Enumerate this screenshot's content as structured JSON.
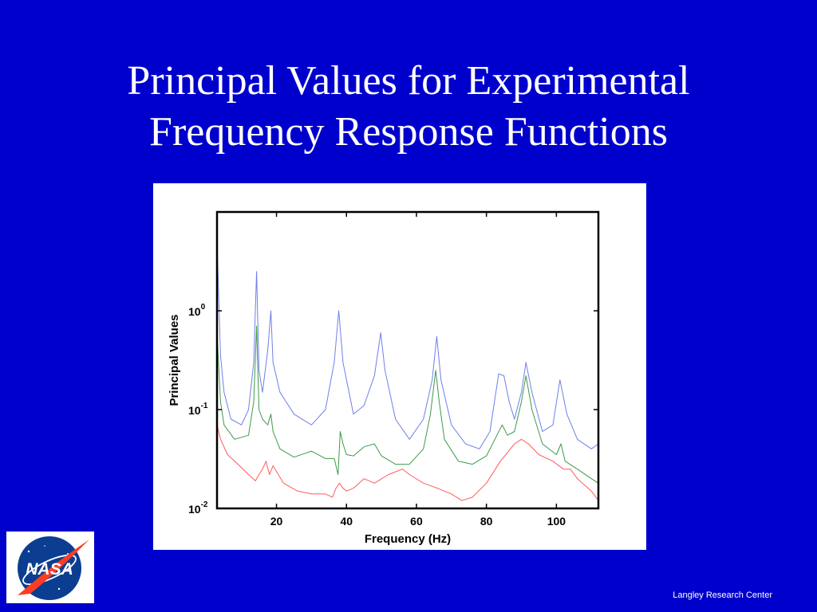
{
  "slide": {
    "title_line1": "Principal Values for Experimental",
    "title_line2": "Frequency Response Functions",
    "footer": "Langley Research Center",
    "logo_text": "NASA"
  },
  "colors": {
    "background": "#0000cc",
    "series_blue": "#6f7fe8",
    "series_green": "#3c9a4a",
    "series_red": "#ff5a5a"
  },
  "chart_data": {
    "type": "line",
    "title": "",
    "xlabel": "Frequency (Hz)",
    "ylabel": "Principal Values",
    "xlim": [
      3,
      112
    ],
    "ylim": [
      0.01,
      10
    ],
    "yscale": "log",
    "x_ticks": [
      20,
      40,
      60,
      80,
      100
    ],
    "x_tick_labels": [
      "20",
      "40",
      "60",
      "80",
      "100"
    ],
    "y_ticks": [
      {
        "value": 0.01,
        "base": "10",
        "exp": "-2"
      },
      {
        "value": 0.1,
        "base": "10",
        "exp": "-1"
      },
      {
        "value": 1,
        "base": "10",
        "exp": "0"
      }
    ],
    "grid": false,
    "legend": "none",
    "series": [
      {
        "color": "#6f7fe8",
        "x": [
          3,
          4,
          5,
          7,
          10,
          12,
          13.5,
          14.3,
          15,
          16,
          17.5,
          18.4,
          19,
          21,
          25,
          30,
          34,
          36.5,
          37.8,
          39,
          42,
          45,
          48,
          49.8,
          51,
          54,
          58,
          62,
          64.5,
          65.8,
          67,
          70,
          74,
          78,
          81,
          83.5,
          85,
          86.5,
          88,
          90,
          91.3,
          93,
          96,
          99,
          101,
          103,
          106,
          110,
          112
        ],
        "y": [
          5,
          0.35,
          0.15,
          0.08,
          0.07,
          0.1,
          0.3,
          2.5,
          0.25,
          0.15,
          0.4,
          1.0,
          0.3,
          0.15,
          0.09,
          0.07,
          0.1,
          0.3,
          1.0,
          0.3,
          0.09,
          0.11,
          0.22,
          0.6,
          0.25,
          0.08,
          0.05,
          0.08,
          0.2,
          0.55,
          0.2,
          0.07,
          0.045,
          0.04,
          0.06,
          0.23,
          0.22,
          0.12,
          0.08,
          0.15,
          0.3,
          0.15,
          0.06,
          0.07,
          0.2,
          0.09,
          0.05,
          0.04,
          0.045
        ]
      },
      {
        "color": "#3c9a4a",
        "x": [
          3,
          4,
          5,
          8,
          12,
          13.5,
          14.3,
          15,
          16,
          17.5,
          18.4,
          19,
          21,
          25,
          30,
          34,
          36.5,
          37.6,
          38.2,
          39,
          40,
          42,
          45,
          48,
          50,
          54,
          58,
          62,
          64,
          65.5,
          66.5,
          68,
          72,
          76,
          80,
          83,
          84.5,
          86,
          88,
          90,
          91.3,
          93,
          96,
          100,
          101.3,
          102.5,
          106,
          110,
          112
        ],
        "y": [
          0.6,
          0.12,
          0.07,
          0.05,
          0.055,
          0.12,
          0.7,
          0.1,
          0.08,
          0.07,
          0.09,
          0.06,
          0.04,
          0.033,
          0.038,
          0.032,
          0.032,
          0.022,
          0.06,
          0.045,
          0.035,
          0.034,
          0.042,
          0.045,
          0.034,
          0.028,
          0.028,
          0.04,
          0.09,
          0.25,
          0.12,
          0.05,
          0.03,
          0.028,
          0.034,
          0.055,
          0.07,
          0.055,
          0.06,
          0.12,
          0.22,
          0.1,
          0.045,
          0.035,
          0.045,
          0.03,
          0.025,
          0.02,
          0.018
        ]
      },
      {
        "color": "#ff5a5a",
        "x": [
          3,
          4,
          6,
          9,
          12,
          14,
          15,
          16,
          17,
          18,
          19,
          22,
          26,
          30,
          34,
          36,
          37,
          38,
          39,
          40,
          42,
          45,
          48,
          52,
          56,
          58,
          62,
          66,
          70,
          73,
          76,
          80,
          84,
          88,
          90,
          92,
          95,
          99,
          102,
          104,
          106,
          110,
          112
        ],
        "y": [
          0.07,
          0.05,
          0.035,
          0.028,
          0.022,
          0.019,
          0.022,
          0.025,
          0.03,
          0.022,
          0.027,
          0.018,
          0.015,
          0.014,
          0.014,
          0.013,
          0.016,
          0.018,
          0.016,
          0.015,
          0.016,
          0.02,
          0.018,
          0.022,
          0.025,
          0.022,
          0.018,
          0.016,
          0.014,
          0.012,
          0.013,
          0.018,
          0.03,
          0.045,
          0.05,
          0.045,
          0.035,
          0.03,
          0.025,
          0.025,
          0.02,
          0.015,
          0.012
        ]
      }
    ]
  }
}
